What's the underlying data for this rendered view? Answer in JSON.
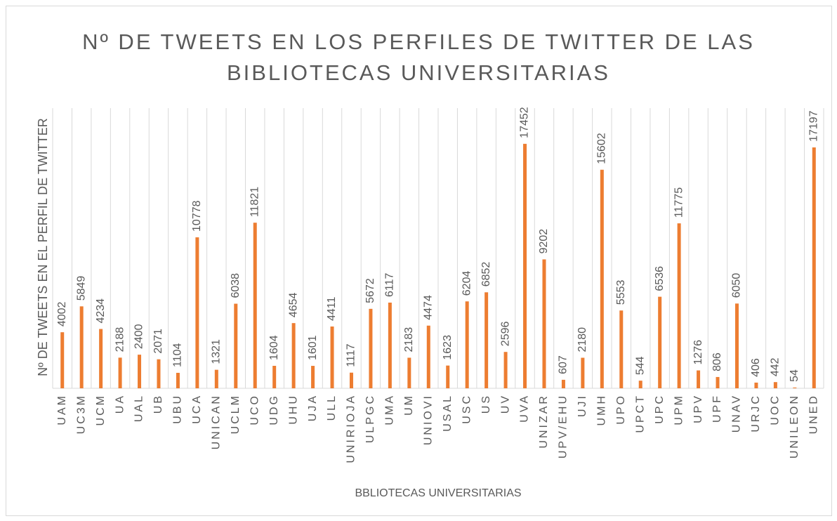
{
  "chart_data": {
    "type": "bar",
    "title": "Nº DE TWEETS EN LOS PERFILES DE TWITTER DE LAS BIBLIOTECAS UNIVERSITARIAS",
    "xlabel": "BBLIOTECAS UNIVERSITARIAS",
    "ylabel": "Nº DE TWEETS EN EL PERFIL DE TWITTER",
    "categories": [
      "UAM",
      "UC3M",
      "UCM",
      "UA",
      "UAL",
      "UB",
      "UBU",
      "UCA",
      "UNICAN",
      "UCLM",
      "UCO",
      "UDG",
      "UHU",
      "UJA",
      "ULL",
      "UNIRIOJA",
      "ULPGC",
      "UMA",
      "UM",
      "UNIOVI",
      "USAL",
      "USC",
      "US",
      "UV",
      "UVA",
      "UNIZAR",
      "UPV/EHU",
      "UJI",
      "UMH",
      "UPO",
      "UPCT",
      "UPC",
      "UPM",
      "UPV",
      "UPF",
      "UNAV",
      "URJC",
      "UOC",
      "UNILEON",
      "UNED"
    ],
    "values": [
      4002,
      5849,
      4234,
      2188,
      2400,
      2071,
      1104,
      10778,
      1321,
      6038,
      11821,
      1604,
      4654,
      1601,
      4411,
      1117,
      5672,
      6117,
      2183,
      4474,
      1623,
      6204,
      6852,
      2596,
      17452,
      9202,
      607,
      2180,
      15602,
      5553,
      544,
      6536,
      11775,
      1276,
      806,
      6050,
      406,
      442,
      54,
      17197
    ],
    "color": "#ed7d31",
    "ylim": [
      0,
      20000
    ],
    "grid": true
  }
}
